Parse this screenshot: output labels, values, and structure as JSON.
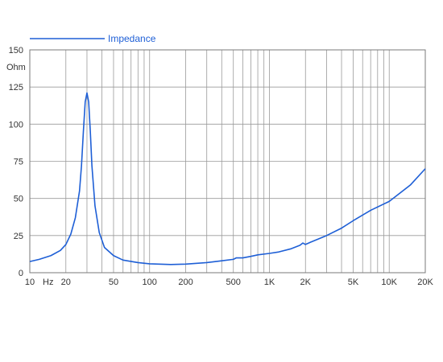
{
  "chart_data": {
    "type": "line",
    "title": "",
    "xlabel": "",
    "ylabel": "Ohm",
    "x_unit": "Hz",
    "x_scale": "log",
    "xlim": [
      10,
      20000
    ],
    "ylim": [
      0,
      150
    ],
    "grid": true,
    "legend_position": "top-left",
    "x_ticks": [
      {
        "value": 10,
        "label": "10"
      },
      {
        "value": 20,
        "label": "20"
      },
      {
        "value": 50,
        "label": "50"
      },
      {
        "value": 100,
        "label": "100"
      },
      {
        "value": 200,
        "label": "200"
      },
      {
        "value": 500,
        "label": "500"
      },
      {
        "value": 1000,
        "label": "1K"
      },
      {
        "value": 2000,
        "label": "2K"
      },
      {
        "value": 5000,
        "label": "5K"
      },
      {
        "value": 10000,
        "label": "10K"
      },
      {
        "value": 20000,
        "label": "20K"
      }
    ],
    "y_ticks": [
      0,
      25,
      50,
      75,
      100,
      125,
      150
    ],
    "series": [
      {
        "name": "Impedance",
        "color": "#1e5fd6",
        "x": [
          10,
          12,
          15,
          18,
          20,
          22,
          24,
          26,
          27,
          28,
          29,
          30,
          31,
          32,
          33,
          35,
          38,
          42,
          50,
          60,
          80,
          100,
          150,
          200,
          300,
          400,
          500,
          530,
          600,
          700,
          800,
          1000,
          1200,
          1500,
          1800,
          1900,
          2000,
          2200,
          3000,
          4000,
          5000,
          7000,
          10000,
          15000,
          20000
        ],
        "y": [
          7.5,
          9,
          11.5,
          15,
          19,
          26,
          37,
          55,
          72,
          95,
          115,
          121,
          115,
          95,
          72,
          45,
          27,
          17,
          11.5,
          8.5,
          6.8,
          6.0,
          5.5,
          5.8,
          6.8,
          8.0,
          9.0,
          10.0,
          10.0,
          11.0,
          12.0,
          13.0,
          14.0,
          16.0,
          18.5,
          20.0,
          19.0,
          20.5,
          25.0,
          30.0,
          35.0,
          42.0,
          48.0,
          59.0,
          70.0
        ]
      }
    ]
  }
}
